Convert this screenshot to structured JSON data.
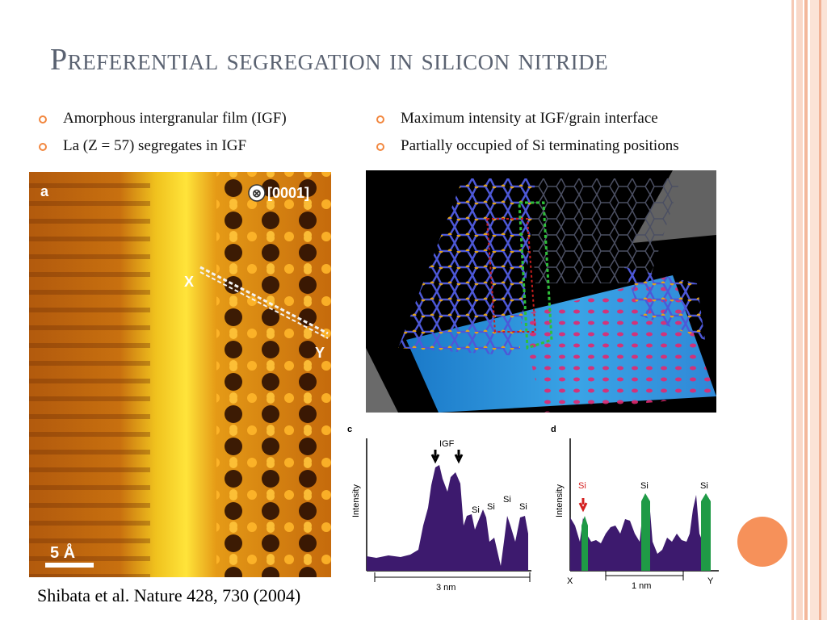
{
  "slide": {
    "title": "Preferential segregation in silicon nitride",
    "bullets_left": [
      "Amorphous intergranular film (IGF)",
      "La (Z = 57) segregates in IGF"
    ],
    "bullets_right": [
      "Maximum intensity at IGF/grain interface",
      "Partially occupied of Si terminating positions"
    ],
    "citation": "Shibata et al. Nature 428, 730 (2004)"
  },
  "figure_a": {
    "panel_label": "a",
    "zone_axis": "[0001]",
    "marker_x": "X",
    "marker_y": "Y",
    "scale_bar": "5 Å"
  },
  "figure_c": {
    "panel_label": "c",
    "ylabel": "Intensity",
    "igf_label": "IGF",
    "peak_labels": [
      "Si",
      "Si",
      "Si",
      "Si"
    ],
    "scale": "3 nm"
  },
  "figure_d": {
    "panel_label": "d",
    "ylabel": "Intensity",
    "peak_labels": [
      "Si",
      "Si",
      "Si"
    ],
    "x_label": "X",
    "y_label": "Y",
    "scale": "1 nm"
  },
  "colors": {
    "accent": "#f2873f",
    "title": "#5a6271",
    "profile_fill": "#3d1a6e",
    "si_peak_green": "#1f9a46",
    "si_label_red": "#d42020"
  }
}
